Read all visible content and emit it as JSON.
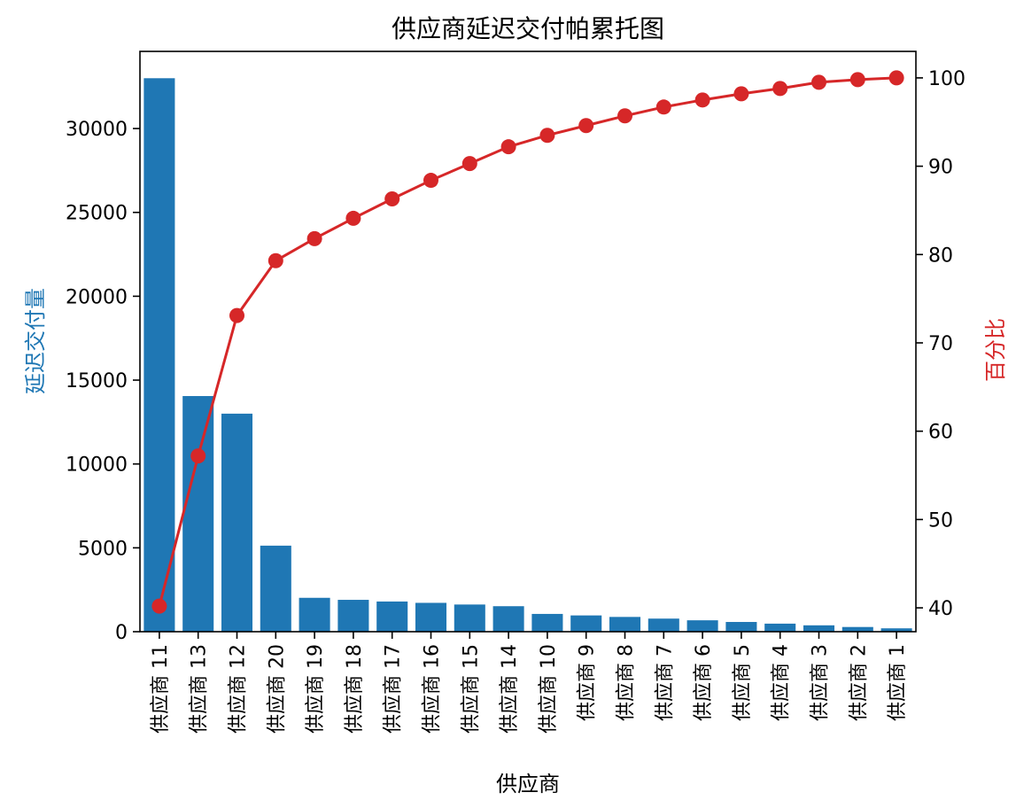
{
  "chart_data": {
    "type": "bar",
    "title": "供应商延迟交付帕累托图",
    "xlabel": "供应商",
    "ylabel": "延迟交付量",
    "y2label": "百分比",
    "categories": [
      "供应商 11",
      "供应商 13",
      "供应商 12",
      "供应商 20",
      "供应商 19",
      "供应商 18",
      "供应商 17",
      "供应商 16",
      "供应商 15",
      "供应商 14",
      "供应商 10",
      "供应商 9",
      "供应商 8",
      "供应商 7",
      "供应商 6",
      "供应商 5",
      "供应商 4",
      "供应商 3",
      "供应商 2",
      "供应商 1"
    ],
    "series": [
      {
        "values": [
          33000,
          14050,
          13000,
          5130,
          2020,
          1900,
          1800,
          1720,
          1620,
          1520,
          1060,
          970,
          880,
          780,
          680,
          580,
          480,
          380,
          280,
          200
        ],
        "color": "#1f77b4",
        "axis": "left"
      },
      {
        "values": [
          40.2,
          57.2,
          73.1,
          79.3,
          81.8,
          84.1,
          86.3,
          88.4,
          90.3,
          92.2,
          93.5,
          94.6,
          95.7,
          96.7,
          97.5,
          98.2,
          98.8,
          99.5,
          99.8,
          100
        ],
        "color": "#d62728",
        "axis": "right"
      }
    ],
    "yticks": [
      "0",
      "5000",
      "10000",
      "15000",
      "20000",
      "25000",
      "30000"
    ],
    "y2ticks": [
      "40",
      "50",
      "60",
      "70",
      "80",
      "90",
      "100"
    ],
    "ylim": [
      0,
      34600
    ],
    "y2lim": [
      37.3,
      103.0
    ]
  }
}
